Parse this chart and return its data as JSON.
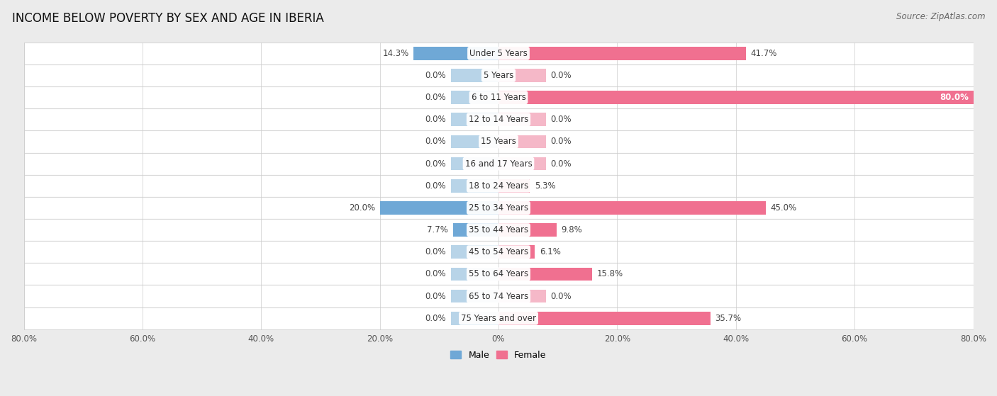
{
  "title": "INCOME BELOW POVERTY BY SEX AND AGE IN IBERIA",
  "source": "Source: ZipAtlas.com",
  "categories": [
    "Under 5 Years",
    "5 Years",
    "6 to 11 Years",
    "12 to 14 Years",
    "15 Years",
    "16 and 17 Years",
    "18 to 24 Years",
    "25 to 34 Years",
    "35 to 44 Years",
    "45 to 54 Years",
    "55 to 64 Years",
    "65 to 74 Years",
    "75 Years and over"
  ],
  "male": [
    14.3,
    0.0,
    0.0,
    0.0,
    0.0,
    0.0,
    0.0,
    20.0,
    7.7,
    0.0,
    0.0,
    0.0,
    0.0
  ],
  "female": [
    41.7,
    0.0,
    80.0,
    0.0,
    0.0,
    0.0,
    5.3,
    45.0,
    9.8,
    6.1,
    15.8,
    0.0,
    35.7
  ],
  "male_color_active": "#6fa8d6",
  "male_color_zero": "#b8d4e8",
  "female_color_active": "#f07090",
  "female_color_zero": "#f5b8c8",
  "axis_max": 80.0,
  "stub_size": 8.0,
  "bg_color": "#ebebeb",
  "row_bg_color": "#ffffff",
  "row_sep_color": "#d8d8d8",
  "title_fontsize": 12,
  "label_fontsize": 8.5,
  "tick_fontsize": 8.5,
  "source_fontsize": 8.5
}
